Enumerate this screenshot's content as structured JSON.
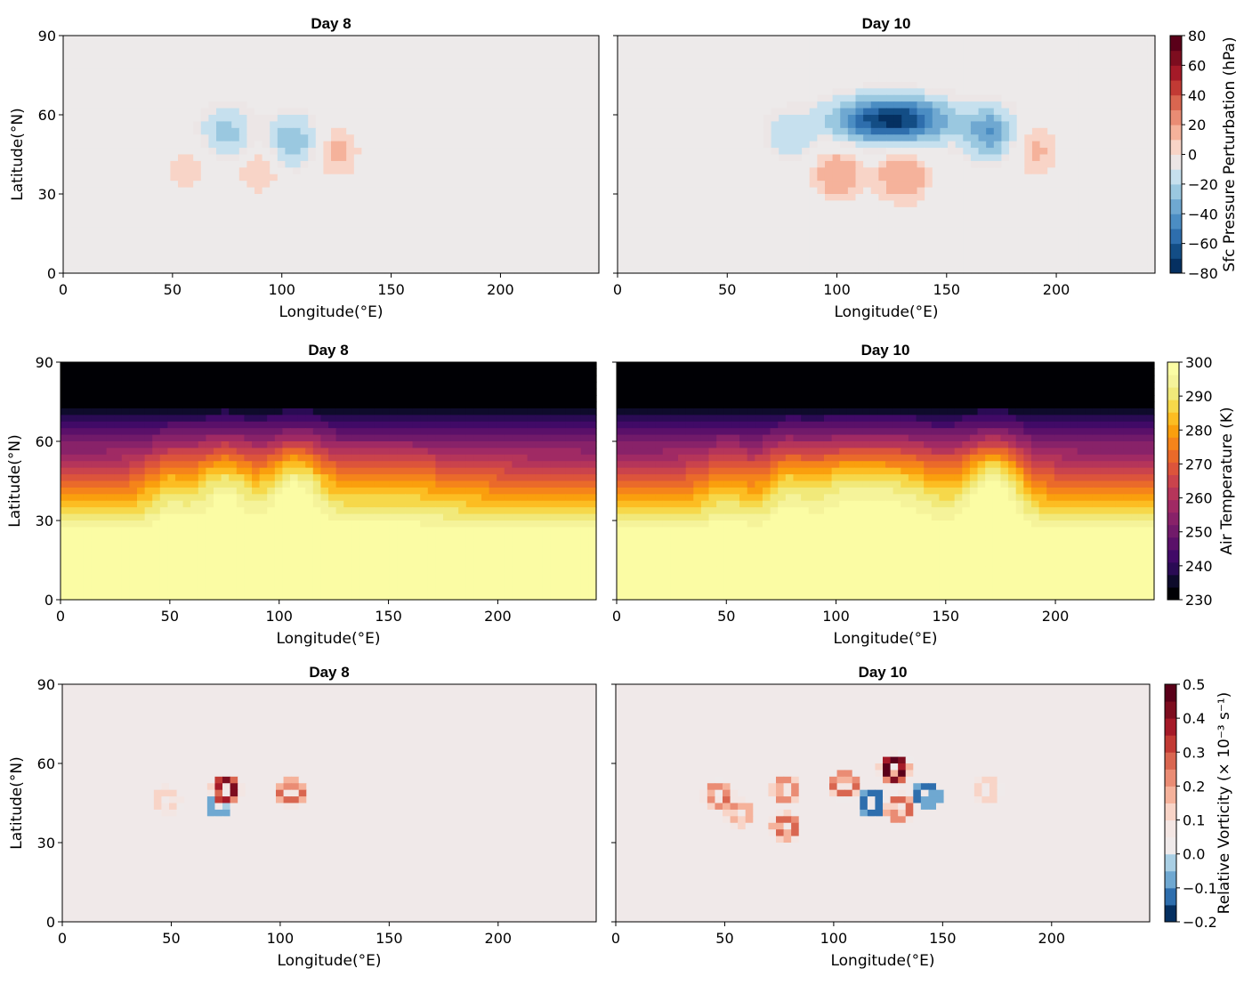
{
  "chart_data": [
    {
      "type": "contour",
      "title": "Day 8",
      "xlabel": "Longitude(°E)",
      "ylabel": "Latitude(°N)",
      "xlim": [
        0,
        245
      ],
      "ylim": [
        0,
        90
      ],
      "xticks": [
        "0",
        "50",
        "100",
        "150",
        "200"
      ],
      "yticks": [
        "0",
        "30",
        "60",
        "90"
      ],
      "field": "pressure",
      "features": [
        {
          "x": 75,
          "y": 53,
          "v": -25
        },
        {
          "x": 105,
          "y": 50,
          "v": -30
        },
        {
          "x": 57,
          "y": 41,
          "v": 10
        },
        {
          "x": 90,
          "y": 40,
          "v": 12
        },
        {
          "x": 124,
          "y": 46,
          "v": 13
        },
        {
          "x": 50,
          "y": 51,
          "v": -6
        }
      ]
    },
    {
      "type": "contour",
      "title": "Day 10",
      "xlabel": "Longitude(°E)",
      "ylabel": "",
      "xlim": [
        0,
        245
      ],
      "ylim": [
        0,
        90
      ],
      "xticks": [
        "0",
        "50",
        "100",
        "150",
        "200"
      ],
      "yticks": [
        "",
        "",
        "",
        ""
      ],
      "field": "pressure",
      "features": [
        {
          "x": 125,
          "y": 58,
          "v": -75
        },
        {
          "x": 170,
          "y": 53,
          "v": -38
        },
        {
          "x": 77,
          "y": 51,
          "v": -20
        },
        {
          "x": 130,
          "y": 37,
          "v": 20
        },
        {
          "x": 100,
          "y": 38,
          "v": 18
        },
        {
          "x": 190,
          "y": 47,
          "v": 12
        },
        {
          "x": 70,
          "y": 42,
          "v": 8
        }
      ]
    },
    {
      "type": "contour",
      "title": "Day 8",
      "xlabel": "Longitude(°E)",
      "ylabel": "Latitude(°N)",
      "xlim": [
        0,
        245
      ],
      "ylim": [
        0,
        90
      ],
      "xticks": [
        "0",
        "50",
        "100",
        "150",
        "200"
      ],
      "yticks": [
        "0",
        "30",
        "60",
        "90"
      ],
      "field": "temperature",
      "waves": [
        {
          "x": 50,
          "amp": 8,
          "w": 8
        },
        {
          "x": 75,
          "amp": 14,
          "w": 10
        },
        {
          "x": 107,
          "amp": 16,
          "w": 10
        },
        {
          "x": 150,
          "amp": 5,
          "w": 25
        }
      ]
    },
    {
      "type": "contour",
      "title": "Day 10",
      "xlabel": "Longitude(°E)",
      "ylabel": "",
      "xlim": [
        0,
        245
      ],
      "ylim": [
        0,
        90
      ],
      "xticks": [
        "0",
        "50",
        "100",
        "150",
        "200"
      ],
      "yticks": [
        "",
        "",
        "",
        ""
      ],
      "field": "temperature",
      "waves": [
        {
          "x": 50,
          "amp": 6,
          "w": 8
        },
        {
          "x": 78,
          "amp": 10,
          "w": 8
        },
        {
          "x": 125,
          "amp": 12,
          "w": 20
        },
        {
          "x": 172,
          "amp": 18,
          "w": 10
        },
        {
          "x": 100,
          "amp": 6,
          "w": 10
        }
      ]
    },
    {
      "type": "contour",
      "title": "Day 8",
      "xlabel": "Longitude(°E)",
      "ylabel": "Latitude(°N)",
      "xlim": [
        0,
        245
      ],
      "ylim": [
        0,
        90
      ],
      "xticks": [
        "0",
        "50",
        "100",
        "150",
        "200"
      ],
      "yticks": [
        "0",
        "30",
        "60",
        "90"
      ],
      "field": "vorticity",
      "features": [
        {
          "x": 48,
          "y": 46,
          "v": 0.15
        },
        {
          "x": 75,
          "y": 50,
          "v": 0.45
        },
        {
          "x": 105,
          "y": 49,
          "v": 0.3
        },
        {
          "x": 72,
          "y": 45,
          "v": -0.1
        }
      ]
    },
    {
      "type": "contour",
      "title": "Day 10",
      "xlabel": "Longitude(°E)",
      "ylabel": "",
      "xlim": [
        0,
        245
      ],
      "ylim": [
        0,
        90
      ],
      "xticks": [
        "0",
        "50",
        "100",
        "150",
        "200"
      ],
      "yticks": [
        "",
        "",
        "",
        ""
      ],
      "field": "vorticity",
      "features": [
        {
          "x": 47,
          "y": 48,
          "v": 0.25
        },
        {
          "x": 57,
          "y": 41,
          "v": 0.2
        },
        {
          "x": 78,
          "y": 50,
          "v": 0.25
        },
        {
          "x": 78,
          "y": 36,
          "v": 0.3
        },
        {
          "x": 105,
          "y": 52,
          "v": 0.3
        },
        {
          "x": 128,
          "y": 58,
          "v": 0.5
        },
        {
          "x": 130,
          "y": 43,
          "v": 0.3
        },
        {
          "x": 170,
          "y": 50,
          "v": 0.15
        },
        {
          "x": 118,
          "y": 45,
          "v": -0.15
        },
        {
          "x": 143,
          "y": 48,
          "v": -0.12
        }
      ]
    }
  ],
  "colorbars": [
    {
      "label": "Sfc Pressure Perturbation (hPa)",
      "ticks": [
        "80",
        "60",
        "40",
        "20",
        "0",
        "−20",
        "−40",
        "−60",
        "−80"
      ],
      "colors": [
        "#053061",
        "#134d85",
        "#2e6ead",
        "#4b8dc3",
        "#6fa8d1",
        "#9ac8e0",
        "#c6e0ee",
        "#ece6e6",
        "#f8d4c7",
        "#f5b29b",
        "#ea8c74",
        "#d96650",
        "#c23a34",
        "#a51a28",
        "#7d0d1f",
        "#5a0019"
      ]
    },
    {
      "label": "Air Temperature (K)",
      "ticks": [
        "300",
        "290",
        "280",
        "270",
        "260",
        "250",
        "240",
        "230"
      ],
      "colors": [
        "#000004",
        "#0e0b2b",
        "#2a0b54",
        "#410a67",
        "#5a1069",
        "#711a6a",
        "#882269",
        "#a02a64",
        "#b5355a",
        "#ca434c",
        "#dc543b",
        "#ea6a2a",
        "#f5841a",
        "#fa9f0d",
        "#fcbd22",
        "#f6d84a",
        "#f1e97a",
        "#f5f39a",
        "#fbfca4"
      ]
    },
    {
      "label": "Relative Vorticity (× 10⁻³ s⁻¹)",
      "ticks": [
        "0.5",
        "0.4",
        "0.3",
        "0.2",
        "0.1",
        "0.0",
        "−0.1",
        "−0.2"
      ],
      "colors": [
        "#053061",
        "#2e6ead",
        "#6fa8d1",
        "#a9cfe4",
        "#efeaea",
        "#f3e6e3",
        "#f8d4c7",
        "#f5b29b",
        "#ea8c74",
        "#d96650",
        "#c23a34",
        "#a51a28",
        "#7d0d1f",
        "#5a0019"
      ]
    }
  ]
}
